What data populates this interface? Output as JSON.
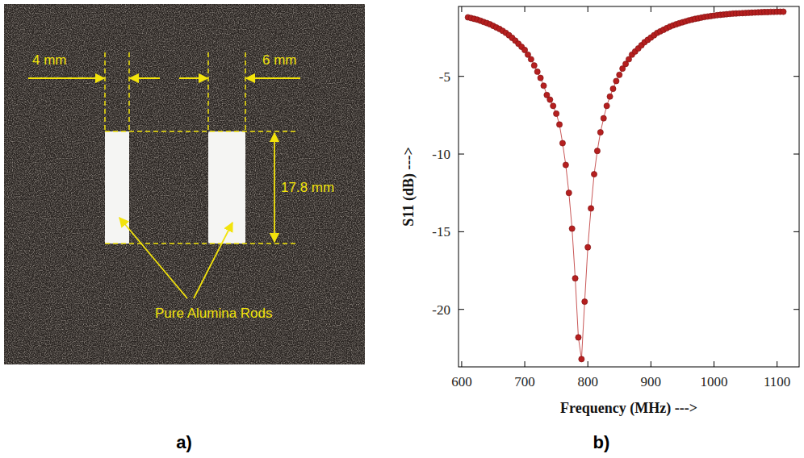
{
  "photo": {
    "labels": {
      "left_width": "4 mm",
      "right_width": "6 mm",
      "height": "17.8 mm",
      "rods": "Pure Alumina Rods"
    }
  },
  "panel_labels": [
    "a)",
    "b)"
  ],
  "chart_data": {
    "type": "line",
    "marker": "circle",
    "line_style": "solid",
    "color": "#b51f1f",
    "grid": false,
    "x_label": "Frequency (MHz) --->",
    "y_label": "S11 (dB) --->",
    "xlim": [
      595,
      1135
    ],
    "ylim": [
      -23.7,
      -0.5
    ],
    "xticks": [
      600,
      700,
      800,
      900,
      1000,
      1100
    ],
    "yticks": [
      -5,
      -10,
      -15,
      -20
    ],
    "x": [
      610,
      615,
      620,
      625,
      630,
      635,
      640,
      645,
      650,
      655,
      660,
      665,
      670,
      675,
      680,
      685,
      690,
      695,
      700,
      705,
      710,
      715,
      720,
      725,
      730,
      735,
      740,
      745,
      750,
      755,
      760,
      765,
      770,
      775,
      780,
      785,
      790,
      795,
      800,
      805,
      810,
      815,
      820,
      825,
      830,
      835,
      840,
      845,
      850,
      855,
      860,
      865,
      870,
      875,
      880,
      885,
      890,
      895,
      900,
      905,
      910,
      915,
      920,
      925,
      930,
      935,
      940,
      945,
      950,
      955,
      960,
      965,
      970,
      975,
      980,
      985,
      990,
      995,
      1000,
      1005,
      1010,
      1015,
      1020,
      1025,
      1030,
      1035,
      1040,
      1045,
      1050,
      1055,
      1060,
      1065,
      1070,
      1075,
      1080,
      1085,
      1090,
      1095,
      1100,
      1105,
      1110
    ],
    "values": [
      -1.2,
      -1.25,
      -1.3,
      -1.35,
      -1.42,
      -1.5,
      -1.57,
      -1.65,
      -1.75,
      -1.85,
      -1.95,
      -2.07,
      -2.2,
      -2.35,
      -2.52,
      -2.7,
      -2.9,
      -3.1,
      -3.3,
      -3.6,
      -3.9,
      -4.3,
      -4.7,
      -5.1,
      -5.6,
      -6.2,
      -6.5,
      -6.9,
      -7.4,
      -8.1,
      -9.3,
      -10.7,
      -12.5,
      -14.8,
      -18.0,
      -21.8,
      -23.2,
      -19.5,
      -16.0,
      -13.5,
      -11.3,
      -9.8,
      -8.6,
      -7.7,
      -6.9,
      -6.3,
      -5.8,
      -5.3,
      -4.9,
      -4.5,
      -4.2,
      -3.9,
      -3.6,
      -3.4,
      -3.2,
      -3.0,
      -2.8,
      -2.65,
      -2.5,
      -2.35,
      -2.2,
      -2.1,
      -2.0,
      -1.9,
      -1.8,
      -1.72,
      -1.65,
      -1.58,
      -1.52,
      -1.46,
      -1.4,
      -1.35,
      -1.3,
      -1.26,
      -1.22,
      -1.18,
      -1.15,
      -1.12,
      -1.09,
      -1.06,
      -1.04,
      -1.02,
      -1.0,
      -0.98,
      -0.96,
      -0.95,
      -0.94,
      -0.93,
      -0.92,
      -0.91,
      -0.9,
      -0.89,
      -0.88,
      -0.87,
      -0.86,
      -0.86,
      -0.85,
      -0.85,
      -0.84,
      -0.84,
      -0.84
    ]
  }
}
